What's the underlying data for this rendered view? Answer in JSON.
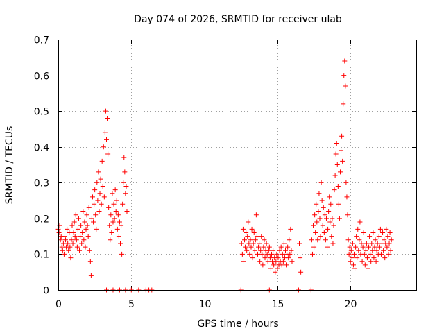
{
  "chart_data": {
    "type": "scatter",
    "title": "Day 074 of 2026, SRMTID for receiver ulab",
    "xlabel": "GPS time / hours",
    "ylabel": "SRMTID / TECUs",
    "xlim": [
      0,
      24.5
    ],
    "ylim": [
      0,
      0.7
    ],
    "xticks": [
      0,
      5,
      10,
      15,
      20
    ],
    "xtick_labels": [
      "0",
      "5",
      "10",
      "15",
      "20"
    ],
    "yticks": [
      0,
      0.1,
      0.2,
      0.3,
      0.4,
      0.5,
      0.6,
      0.7
    ],
    "ytick_labels": [
      "0",
      "0.1",
      "0.2",
      "0.3",
      "0.4",
      "0.5",
      "0.6",
      "0.7"
    ],
    "grid": true,
    "marker": "plus",
    "series": [
      {
        "name": "SRMTID",
        "color": "#ff0000",
        "points": [
          [
            0.0,
            0.17
          ],
          [
            0.05,
            0.16
          ],
          [
            0.1,
            0.18
          ],
          [
            0.15,
            0.14
          ],
          [
            0.2,
            0.15
          ],
          [
            0.25,
            0.12
          ],
          [
            0.3,
            0.11
          ],
          [
            0.35,
            0.13
          ],
          [
            0.4,
            0.1
          ],
          [
            0.45,
            0.15
          ],
          [
            0.5,
            0.14
          ],
          [
            0.55,
            0.12
          ],
          [
            0.6,
            0.17
          ],
          [
            0.65,
            0.13
          ],
          [
            0.7,
            0.11
          ],
          [
            0.75,
            0.16
          ],
          [
            0.8,
            0.12
          ],
          [
            0.85,
            0.09
          ],
          [
            0.9,
            0.14
          ],
          [
            0.95,
            0.18
          ],
          [
            1.0,
            0.13
          ],
          [
            1.05,
            0.16
          ],
          [
            1.1,
            0.19
          ],
          [
            1.15,
            0.15
          ],
          [
            1.2,
            0.21
          ],
          [
            1.25,
            0.14
          ],
          [
            1.3,
            0.12
          ],
          [
            1.35,
            0.17
          ],
          [
            1.4,
            0.2
          ],
          [
            1.45,
            0.11
          ],
          [
            1.5,
            0.15
          ],
          [
            1.55,
            0.18
          ],
          [
            1.6,
            0.13
          ],
          [
            1.65,
            0.16
          ],
          [
            1.7,
            0.22
          ],
          [
            1.75,
            0.14
          ],
          [
            1.8,
            0.19
          ],
          [
            1.85,
            0.12
          ],
          [
            1.9,
            0.17
          ],
          [
            1.95,
            0.21
          ],
          [
            2.0,
            0.18
          ],
          [
            2.05,
            0.15
          ],
          [
            2.1,
            0.23
          ],
          [
            2.15,
            0.11
          ],
          [
            2.2,
            0.08
          ],
          [
            2.25,
            0.04
          ],
          [
            2.3,
            0.2
          ],
          [
            2.35,
            0.26
          ],
          [
            2.4,
            0.19
          ],
          [
            2.45,
            0.24
          ],
          [
            2.5,
            0.28
          ],
          [
            2.55,
            0.21
          ],
          [
            2.6,
            0.17
          ],
          [
            2.65,
            0.3
          ],
          [
            2.7,
            0.25
          ],
          [
            2.75,
            0.33
          ],
          [
            2.8,
            0.22
          ],
          [
            2.85,
            0.27
          ],
          [
            2.9,
            0.31
          ],
          [
            2.95,
            0.24
          ],
          [
            3.0,
            0.36
          ],
          [
            3.05,
            0.29
          ],
          [
            3.1,
            0.4
          ],
          [
            3.15,
            0.26
          ],
          [
            3.2,
            0.44
          ],
          [
            3.25,
            0.5
          ],
          [
            3.3,
            0.42
          ],
          [
            3.35,
            0.48
          ],
          [
            3.4,
            0.38
          ],
          [
            3.45,
            0.23
          ],
          [
            3.5,
            0.18
          ],
          [
            3.55,
            0.14
          ],
          [
            3.6,
            0.21
          ],
          [
            3.65,
            0.16
          ],
          [
            3.7,
            0.27
          ],
          [
            3.75,
            0.19
          ],
          [
            3.8,
            0.24
          ],
          [
            3.85,
            0.2
          ],
          [
            3.9,
            0.28
          ],
          [
            3.95,
            0.22
          ],
          [
            4.0,
            0.25
          ],
          [
            4.05,
            0.17
          ],
          [
            4.1,
            0.21
          ],
          [
            4.15,
            0.15
          ],
          [
            4.2,
            0.19
          ],
          [
            4.25,
            0.13
          ],
          [
            4.3,
            0.18
          ],
          [
            4.35,
            0.1
          ],
          [
            4.4,
            0.24
          ],
          [
            4.45,
            0.3
          ],
          [
            4.5,
            0.37
          ],
          [
            4.55,
            0.33
          ],
          [
            4.6,
            0.27
          ],
          [
            4.65,
            0.29
          ],
          [
            4.7,
            0.22
          ],
          [
            3.3,
            0.0
          ],
          [
            3.75,
            0.0
          ],
          [
            4.2,
            0.0
          ],
          [
            4.6,
            0.0
          ],
          [
            5.0,
            0.0
          ],
          [
            5.5,
            0.0
          ],
          [
            6.0,
            0.0
          ],
          [
            6.2,
            0.0
          ],
          [
            6.4,
            0.0
          ],
          [
            12.55,
            0.13
          ],
          [
            12.6,
            0.1
          ],
          [
            12.65,
            0.17
          ],
          [
            12.7,
            0.08
          ],
          [
            12.75,
            0.14
          ],
          [
            12.8,
            0.12
          ],
          [
            12.85,
            0.16
          ],
          [
            12.9,
            0.11
          ],
          [
            12.95,
            0.15
          ],
          [
            13.0,
            0.19
          ],
          [
            13.05,
            0.13
          ],
          [
            13.1,
            0.1
          ],
          [
            13.15,
            0.14
          ],
          [
            13.2,
            0.12
          ],
          [
            13.25,
            0.17
          ],
          [
            13.3,
            0.09
          ],
          [
            13.35,
            0.13
          ],
          [
            13.4,
            0.16
          ],
          [
            13.45,
            0.11
          ],
          [
            13.5,
            0.14
          ],
          [
            13.55,
            0.21
          ],
          [
            13.6,
            0.15
          ],
          [
            13.65,
            0.1
          ],
          [
            13.7,
            0.12
          ],
          [
            13.75,
            0.13
          ],
          [
            13.8,
            0.08
          ],
          [
            13.85,
            0.11
          ],
          [
            13.9,
            0.15
          ],
          [
            13.95,
            0.1
          ],
          [
            14.0,
            0.07
          ],
          [
            14.05,
            0.12
          ],
          [
            14.1,
            0.14
          ],
          [
            14.15,
            0.09
          ],
          [
            14.2,
            0.11
          ],
          [
            14.25,
            0.13
          ],
          [
            14.3,
            0.1
          ],
          [
            14.35,
            0.08
          ],
          [
            14.4,
            0.11
          ],
          [
            14.45,
            0.12
          ],
          [
            14.5,
            0.09
          ],
          [
            14.55,
            0.06
          ],
          [
            14.6,
            0.1
          ],
          [
            14.65,
            0.08
          ],
          [
            14.7,
            0.11
          ],
          [
            14.75,
            0.07
          ],
          [
            14.8,
            0.09
          ],
          [
            14.85,
            0.05
          ],
          [
            14.9,
            0.08
          ],
          [
            14.95,
            0.1
          ],
          [
            15.0,
            0.06
          ],
          [
            15.05,
            0.09
          ],
          [
            15.1,
            0.07
          ],
          [
            15.15,
            0.11
          ],
          [
            15.2,
            0.08
          ],
          [
            15.25,
            0.12
          ],
          [
            15.3,
            0.07
          ],
          [
            15.35,
            0.1
          ],
          [
            15.4,
            0.08
          ],
          [
            15.45,
            0.13
          ],
          [
            15.5,
            0.09
          ],
          [
            15.55,
            0.11
          ],
          [
            15.6,
            0.07
          ],
          [
            15.65,
            0.1
          ],
          [
            15.7,
            0.12
          ],
          [
            15.75,
            0.09
          ],
          [
            15.8,
            0.14
          ],
          [
            15.85,
            0.1
          ],
          [
            15.9,
            0.17
          ],
          [
            15.95,
            0.11
          ],
          [
            16.0,
            0.08
          ],
          [
            16.5,
            0.13
          ],
          [
            16.55,
            0.09
          ],
          [
            16.6,
            0.05
          ],
          [
            12.5,
            0.0
          ],
          [
            14.45,
            0.0
          ],
          [
            16.45,
            0.0
          ],
          [
            17.3,
            0.0
          ],
          [
            17.35,
            0.14
          ],
          [
            17.4,
            0.1
          ],
          [
            17.45,
            0.18
          ],
          [
            17.5,
            0.12
          ],
          [
            17.55,
            0.21
          ],
          [
            17.6,
            0.16
          ],
          [
            17.65,
            0.24
          ],
          [
            17.7,
            0.19
          ],
          [
            17.75,
            0.14
          ],
          [
            17.8,
            0.22
          ],
          [
            17.85,
            0.27
          ],
          [
            17.9,
            0.2
          ],
          [
            17.95,
            0.15
          ],
          [
            18.0,
            0.3
          ],
          [
            18.05,
            0.25
          ],
          [
            18.1,
            0.18
          ],
          [
            18.15,
            0.23
          ],
          [
            18.2,
            0.16
          ],
          [
            18.25,
            0.21
          ],
          [
            18.3,
            0.14
          ],
          [
            18.35,
            0.2
          ],
          [
            18.4,
            0.12
          ],
          [
            18.45,
            0.17
          ],
          [
            18.5,
            0.22
          ],
          [
            18.55,
            0.26
          ],
          [
            18.6,
            0.19
          ],
          [
            18.65,
            0.24
          ],
          [
            18.7,
            0.15
          ],
          [
            18.75,
            0.2
          ],
          [
            18.8,
            0.13
          ],
          [
            18.85,
            0.18
          ],
          [
            18.9,
            0.28
          ],
          [
            18.95,
            0.32
          ],
          [
            19.0,
            0.38
          ],
          [
            19.05,
            0.41
          ],
          [
            19.1,
            0.35
          ],
          [
            19.15,
            0.29
          ],
          [
            19.2,
            0.24
          ],
          [
            19.25,
            0.2
          ],
          [
            19.3,
            0.33
          ],
          [
            19.35,
            0.39
          ],
          [
            19.4,
            0.43
          ],
          [
            19.45,
            0.36
          ],
          [
            19.5,
            0.52
          ],
          [
            19.55,
            0.6
          ],
          [
            19.6,
            0.64
          ],
          [
            19.65,
            0.57
          ],
          [
            19.7,
            0.3
          ],
          [
            19.75,
            0.26
          ],
          [
            19.8,
            0.21
          ],
          [
            19.85,
            0.14
          ],
          [
            19.9,
            0.1
          ],
          [
            19.95,
            0.12
          ],
          [
            20.0,
            0.08
          ],
          [
            20.05,
            0.11
          ],
          [
            20.1,
            0.09
          ],
          [
            20.15,
            0.13
          ],
          [
            20.2,
            0.07
          ],
          [
            20.25,
            0.1
          ],
          [
            20.3,
            0.06
          ],
          [
            20.35,
            0.12
          ],
          [
            20.4,
            0.15
          ],
          [
            20.45,
            0.09
          ],
          [
            20.5,
            0.17
          ],
          [
            20.55,
            0.11
          ],
          [
            20.6,
            0.14
          ],
          [
            20.65,
            0.19
          ],
          [
            20.7,
            0.1
          ],
          [
            20.75,
            0.13
          ],
          [
            20.8,
            0.08
          ],
          [
            20.85,
            0.12
          ],
          [
            20.9,
            0.16
          ],
          [
            20.95,
            0.1
          ],
          [
            21.0,
            0.07
          ],
          [
            21.05,
            0.11
          ],
          [
            21.1,
            0.13
          ],
          [
            21.15,
            0.09
          ],
          [
            21.2,
            0.06
          ],
          [
            21.25,
            0.12
          ],
          [
            21.3,
            0.15
          ],
          [
            21.35,
            0.1
          ],
          [
            21.4,
            0.08
          ],
          [
            21.45,
            0.13
          ],
          [
            21.5,
            0.11
          ],
          [
            21.55,
            0.16
          ],
          [
            21.6,
            0.09
          ],
          [
            21.65,
            0.12
          ],
          [
            21.7,
            0.14
          ],
          [
            21.75,
            0.08
          ],
          [
            21.8,
            0.11
          ],
          [
            21.85,
            0.13
          ],
          [
            21.9,
            0.1
          ],
          [
            21.95,
            0.15
          ],
          [
            22.0,
            0.12
          ],
          [
            22.05,
            0.17
          ],
          [
            22.1,
            0.1
          ],
          [
            22.15,
            0.13
          ],
          [
            22.2,
            0.16
          ],
          [
            22.25,
            0.11
          ],
          [
            22.3,
            0.14
          ],
          [
            22.35,
            0.09
          ],
          [
            22.4,
            0.13
          ],
          [
            22.45,
            0.17
          ],
          [
            22.5,
            0.12
          ],
          [
            22.55,
            0.15
          ],
          [
            22.6,
            0.1
          ],
          [
            22.65,
            0.13
          ],
          [
            22.7,
            0.16
          ],
          [
            22.75,
            0.11
          ],
          [
            22.8,
            0.14
          ]
        ]
      }
    ]
  }
}
